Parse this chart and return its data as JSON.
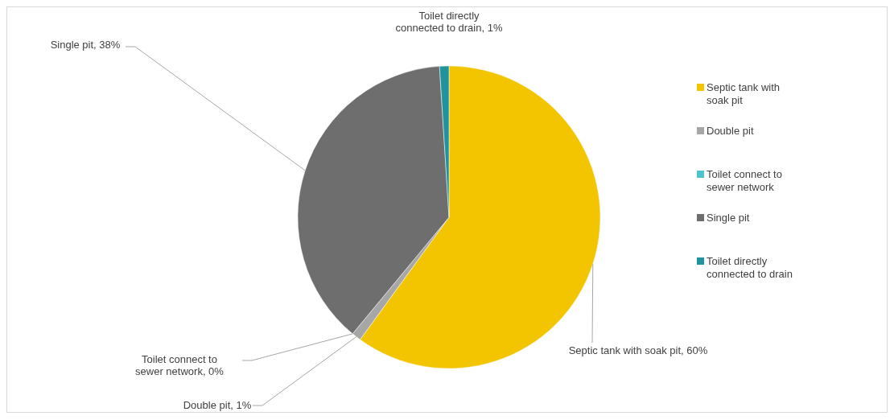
{
  "chart_data": {
    "type": "pie",
    "categories": [
      "Septic tank with soak pit",
      "Double pit",
      "Toilet connect to sewer network",
      "Single pit",
      "Toilet directly connected to drain"
    ],
    "values": [
      60,
      1,
      0,
      38,
      1
    ],
    "colors": [
      "#f2c500",
      "#a6a6a6",
      "#4dc3cc",
      "#6e6e6e",
      "#21939c"
    ],
    "value_labels": [
      "Septic tank with soak pit, 60%",
      "Double pit, 1%",
      "Toilet connect to sewer network, 0%",
      "Single pit, 38%",
      "Toilet directly connected to drain, 1%"
    ],
    "legend": "right"
  }
}
